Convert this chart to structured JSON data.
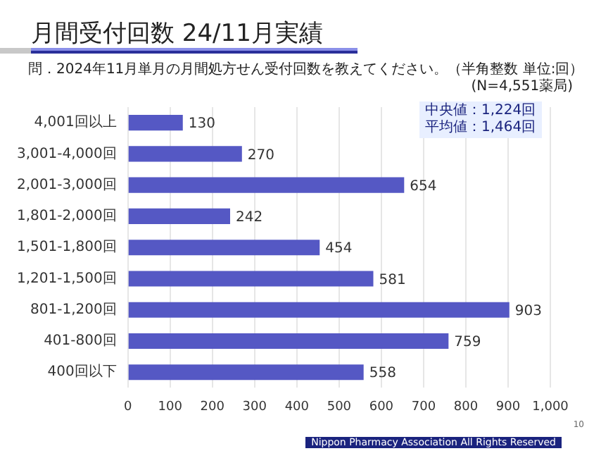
{
  "chart_data": {
    "type": "bar",
    "orientation": "horizontal",
    "title": "月間受付回数  24/11月実績",
    "subtitle": "問．2024年11月単月の月間処方せん受付回数を教えてください。（半角整数  単位:回）",
    "categories": [
      "4,001回以上",
      "3,001-4,000回",
      "2,001-3,000回",
      "1,801-2,000回",
      "1,501-1,800回",
      "1,201-1,500回",
      "801-1,200回",
      "401-800回",
      "400回以下"
    ],
    "values": [
      130,
      270,
      654,
      242,
      454,
      581,
      903,
      759,
      558
    ],
    "color": "#5558c4",
    "xlim": [
      0,
      1000
    ],
    "xticks": [
      0,
      100,
      200,
      300,
      400,
      500,
      600,
      700,
      800,
      900,
      {
        "value": 1000,
        "label": "1,000"
      }
    ],
    "grid": "x",
    "legend": false,
    "data_labels": true,
    "annotations": [
      "(N=4,551薬局)",
      "中央値：1,224回",
      "平均値：1,464回",
      "Nippon Pharmacy Association All Rights Reserved",
      "10"
    ]
  }
}
